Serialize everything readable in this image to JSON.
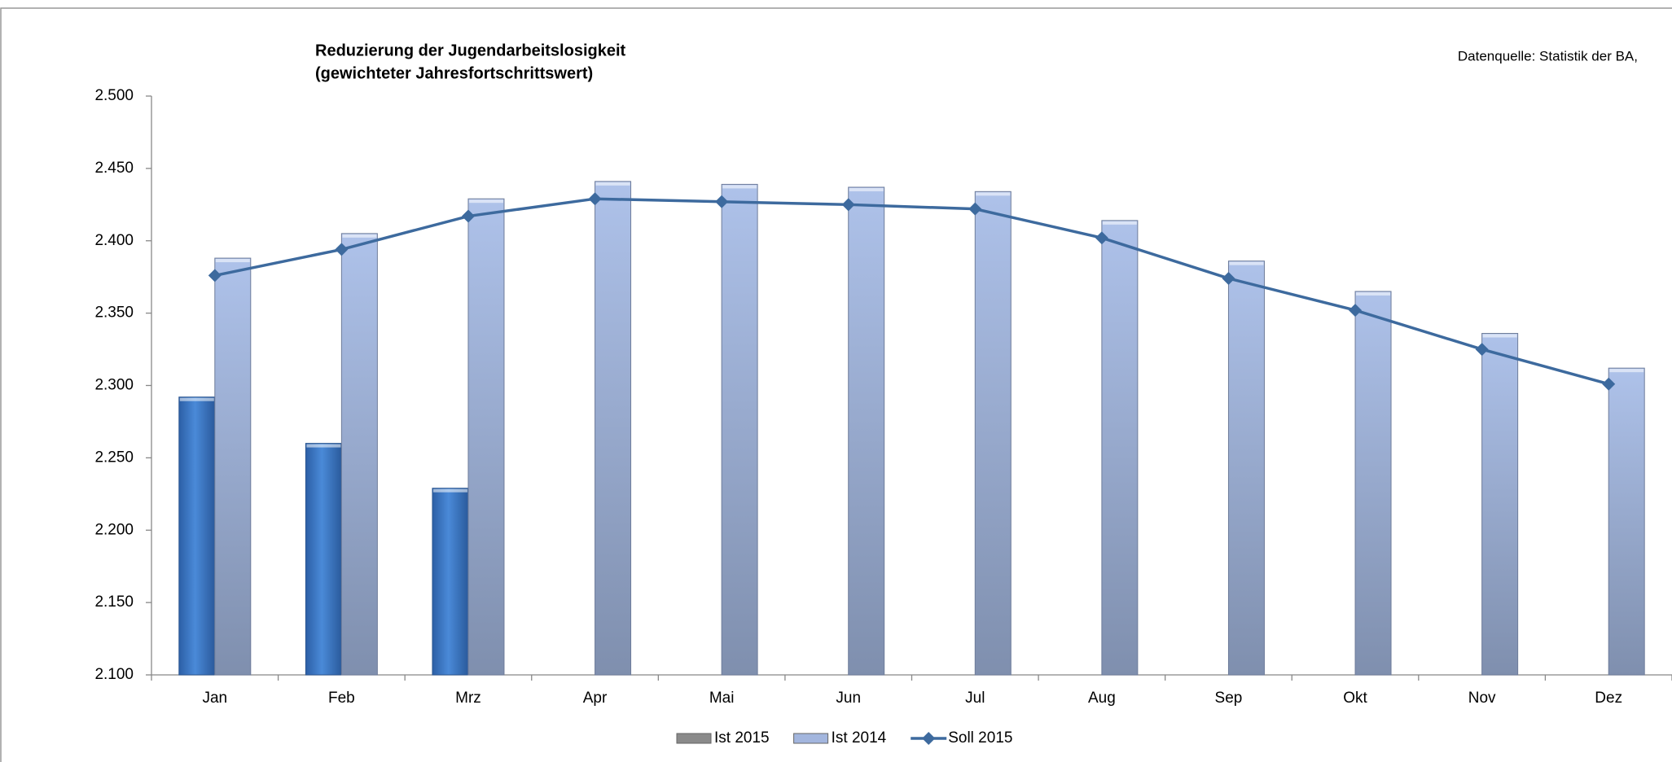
{
  "chart_data": {
    "type": "bar_line",
    "title": "Reduzierung der Jugendarbeitslosigkeit",
    "subtitle": "(gewichteter Jahresfortschrittswert)",
    "source": "Datenquelle: Statistik der BA,",
    "categories": [
      "Jan",
      "Feb",
      "Mrz",
      "Apr",
      "Mai",
      "Jun",
      "Jul",
      "Aug",
      "Sep",
      "Okt",
      "Nov",
      "Dez"
    ],
    "series": [
      {
        "name": "Ist 2015",
        "type": "bar",
        "color": "#3c7ccc",
        "legend_color": "#8a8a8a",
        "values": [
          2292,
          2260,
          2229,
          null,
          null,
          null,
          null,
          null,
          null,
          null,
          null,
          null
        ]
      },
      {
        "name": "Ist 2014",
        "type": "bar",
        "color": "#a3b6de",
        "legend_color": "#a3b6de",
        "values": [
          2388,
          2405,
          2429,
          2441,
          2439,
          2437,
          2434,
          2414,
          2386,
          2365,
          2336,
          2312
        ]
      },
      {
        "name": "Soll 2015",
        "type": "line",
        "color": "#3d6a9e",
        "legend_color": "#3d6a9e",
        "values": [
          2376,
          2394,
          2417,
          2429,
          2427,
          2425,
          2422,
          2402,
          2374,
          2352,
          2325,
          2301
        ]
      }
    ],
    "ylim": [
      2100,
      2500
    ],
    "yticks": [
      {
        "value": 2100,
        "label": "2.100"
      },
      {
        "value": 2150,
        "label": "2.150"
      },
      {
        "value": 2200,
        "label": "2.200"
      },
      {
        "value": 2250,
        "label": "2.250"
      },
      {
        "value": 2300,
        "label": "2.300"
      },
      {
        "value": 2350,
        "label": "2.350"
      },
      {
        "value": 2400,
        "label": "2.400"
      },
      {
        "value": 2450,
        "label": "2.450"
      },
      {
        "value": 2500,
        "label": "2.500"
      }
    ],
    "grid": false,
    "legend": "bottom"
  }
}
